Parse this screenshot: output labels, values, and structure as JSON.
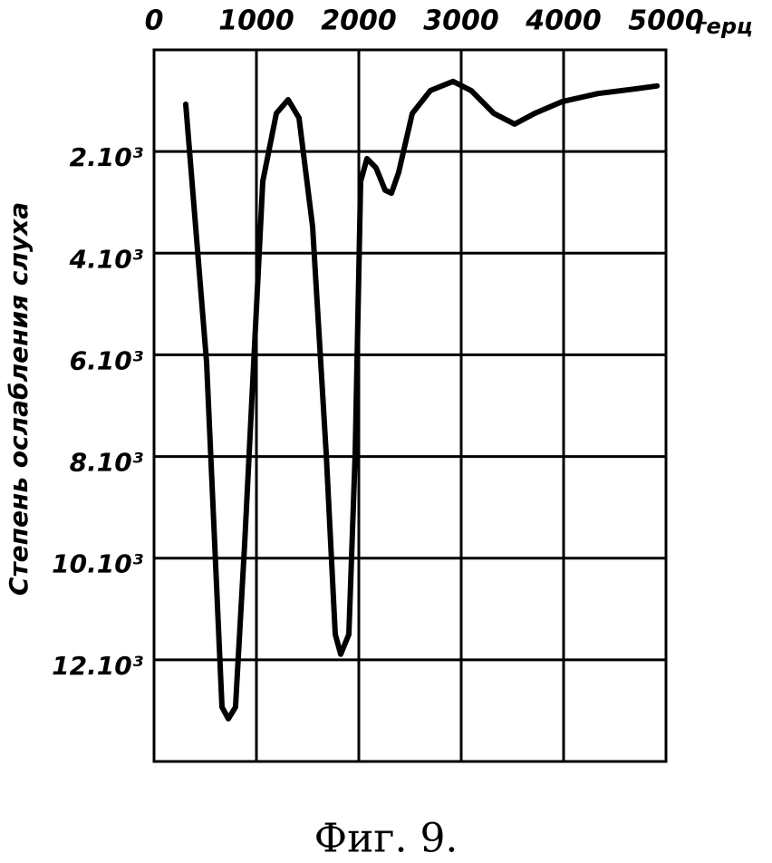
{
  "chart_data": {
    "type": "line",
    "x_label": "герц",
    "y_label": "Степень ослабления слуха",
    "caption": "Фиг. 9.",
    "x": [
      310,
      513,
      664,
      726,
      796,
      885,
      1062,
      1195,
      1310,
      1416,
      1549,
      1681,
      1770,
      1823,
      1903,
      1965,
      2018,
      2080,
      2168,
      2257,
      2319,
      2389,
      2522,
      2699,
      2920,
      3097,
      3319,
      3522,
      3717,
      3982,
      4336,
      4690,
      4912
    ],
    "values": [
      1070,
      6150,
      12930,
      13160,
      12930,
      9720,
      2590,
      1250,
      980,
      1340,
      3480,
      7940,
      11500,
      11890,
      11500,
      7940,
      2590,
      2140,
      2320,
      2760,
      2820,
      2410,
      1250,
      800,
      620,
      800,
      1250,
      1460,
      1250,
      1020,
      860,
      770,
      710
    ],
    "color": "#000000",
    "xlim": [
      0,
      5000
    ],
    "xticks": [
      0,
      1000,
      2000,
      3000,
      4000,
      5000
    ],
    "ylim": [
      0,
      14000
    ],
    "y_inverted": true,
    "yticks": [
      {
        "value": 2000,
        "label": "2.10³"
      },
      {
        "value": 4000,
        "label": "4.10³"
      },
      {
        "value": 6000,
        "label": "6.10³"
      },
      {
        "value": 8000,
        "label": "8.10³"
      },
      {
        "value": 10000,
        "label": "10.10³"
      },
      {
        "value": 12000,
        "label": "12.10³"
      }
    ],
    "grid": true
  }
}
